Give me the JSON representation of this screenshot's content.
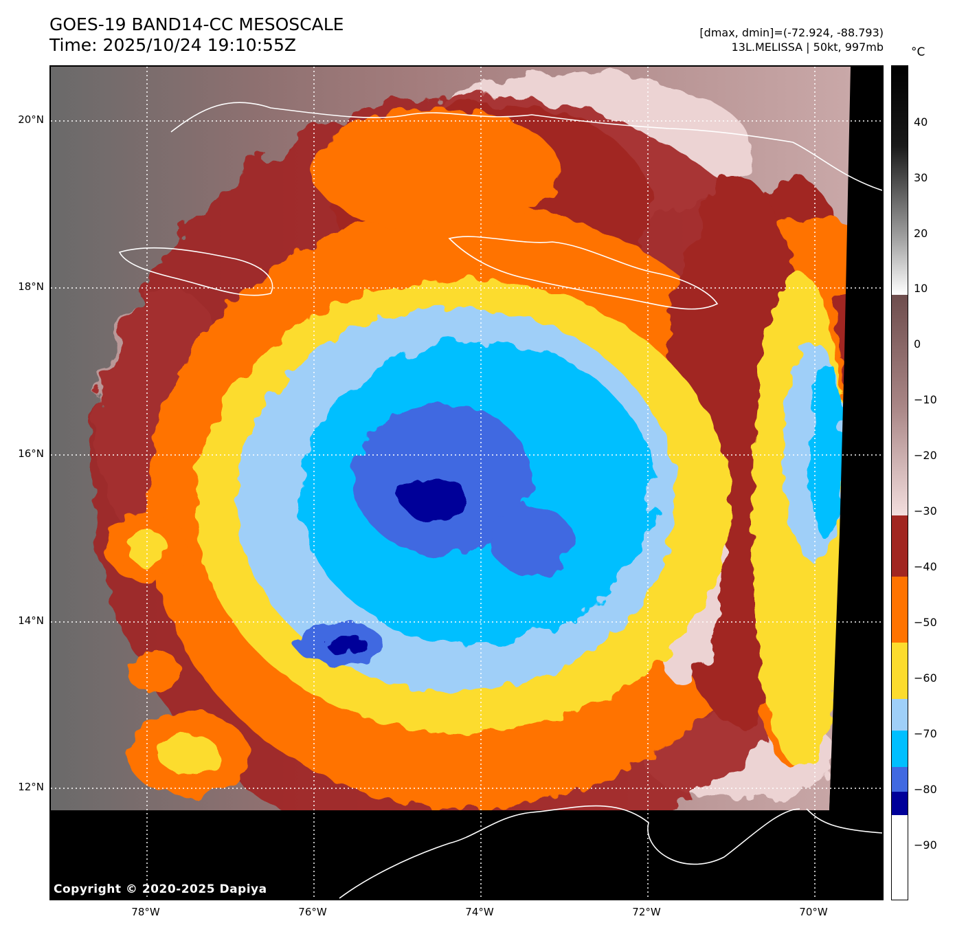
{
  "header": {
    "title_line1": "GOES-19 BAND14-CC MESOSCALE",
    "title_line2": "Time: 2025/10/24 19:10:55Z",
    "range_text": "[dmax, dmin]=(-72.924, -88.793)",
    "storm_text": "13L.MELISSA | 50kt, 997mb"
  },
  "colorbar": {
    "unit": "°C",
    "ticks": [
      "40",
      "30",
      "20",
      "10",
      "0",
      "−10",
      "−20",
      "−30",
      "−40",
      "−50",
      "−60",
      "−70",
      "−80",
      "−90"
    ]
  },
  "axes": {
    "lat_labels": [
      "20°N",
      "18°N",
      "16°N",
      "14°N",
      "12°N"
    ],
    "lon_labels": [
      "78°W",
      "76°W",
      "74°W",
      "72°W",
      "70°W"
    ]
  },
  "colors": {
    "dark_blue": "#000099",
    "royal_blue": "#4169e1",
    "cyan": "#00bfff",
    "light_blue": "#9fcff8",
    "yellow": "#fcdc2e",
    "orange": "#ff7300",
    "dark_red": "#a12621",
    "pink": "#ecd3d3",
    "brown": "#8b6464"
  },
  "footer": {
    "copyright": "Copyright © 2020-2025 Dapiya"
  }
}
